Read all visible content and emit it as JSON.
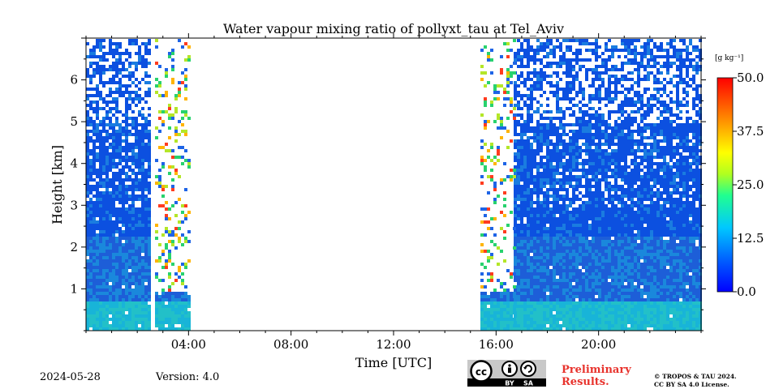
{
  "chart_data": {
    "type": "heatmap",
    "title": "Water vapour mixing ratio of pollyxt_tau at Tel_Aviv",
    "xlabel": "Time [UTC]",
    "ylabel": "Height [km]",
    "x_unit": "hours UTC",
    "xlim": [
      0,
      24
    ],
    "ylim": [
      0,
      7
    ],
    "x_ticks": [
      {
        "value": 4,
        "label": "04:00"
      },
      {
        "value": 8,
        "label": "08:00"
      },
      {
        "value": 12,
        "label": "12:00"
      },
      {
        "value": 16,
        "label": "16:00"
      },
      {
        "value": 20,
        "label": "20:00"
      }
    ],
    "y_ticks": [
      {
        "value": 1,
        "label": "1"
      },
      {
        "value": 2,
        "label": "2"
      },
      {
        "value": 3,
        "label": "3"
      },
      {
        "value": 4,
        "label": "4"
      },
      {
        "value": 5,
        "label": "5"
      },
      {
        "value": 6,
        "label": "6"
      }
    ],
    "colorbar": {
      "unit_label": "[g kg⁻¹]",
      "range": [
        0,
        50
      ],
      "ticks": [
        {
          "value": 0,
          "label": "0.0"
        },
        {
          "value": 12.5,
          "label": "12.5"
        },
        {
          "value": 25,
          "label": "25.0"
        },
        {
          "value": 37.5,
          "label": "37.5"
        },
        {
          "value": 50,
          "label": "50.0"
        }
      ],
      "colormap": "jet"
    },
    "data_segments": [
      {
        "start": 0.0,
        "end": 2.5,
        "description": "dense"
      },
      {
        "start": 2.7,
        "end": 4.0,
        "description": "sparse"
      },
      {
        "start": 15.4,
        "end": 16.7,
        "description": "sparse"
      },
      {
        "start": 16.7,
        "end": 24.0,
        "description": "dense"
      }
    ],
    "data_gap": {
      "start": 4.0,
      "end": 15.4
    }
  },
  "footer": {
    "date": "2024-05-28",
    "version": "Version: 4.0",
    "license_badge_text": [
      "BY",
      "SA"
    ],
    "preliminary": [
      "Preliminary",
      "Results."
    ],
    "copyright": [
      "© TROPOS & TAU 2024.",
      "CC BY SA 4.0 License."
    ]
  },
  "colors": {
    "preliminary_text": "#e8332d",
    "badge_background": "#c8c8c8"
  }
}
